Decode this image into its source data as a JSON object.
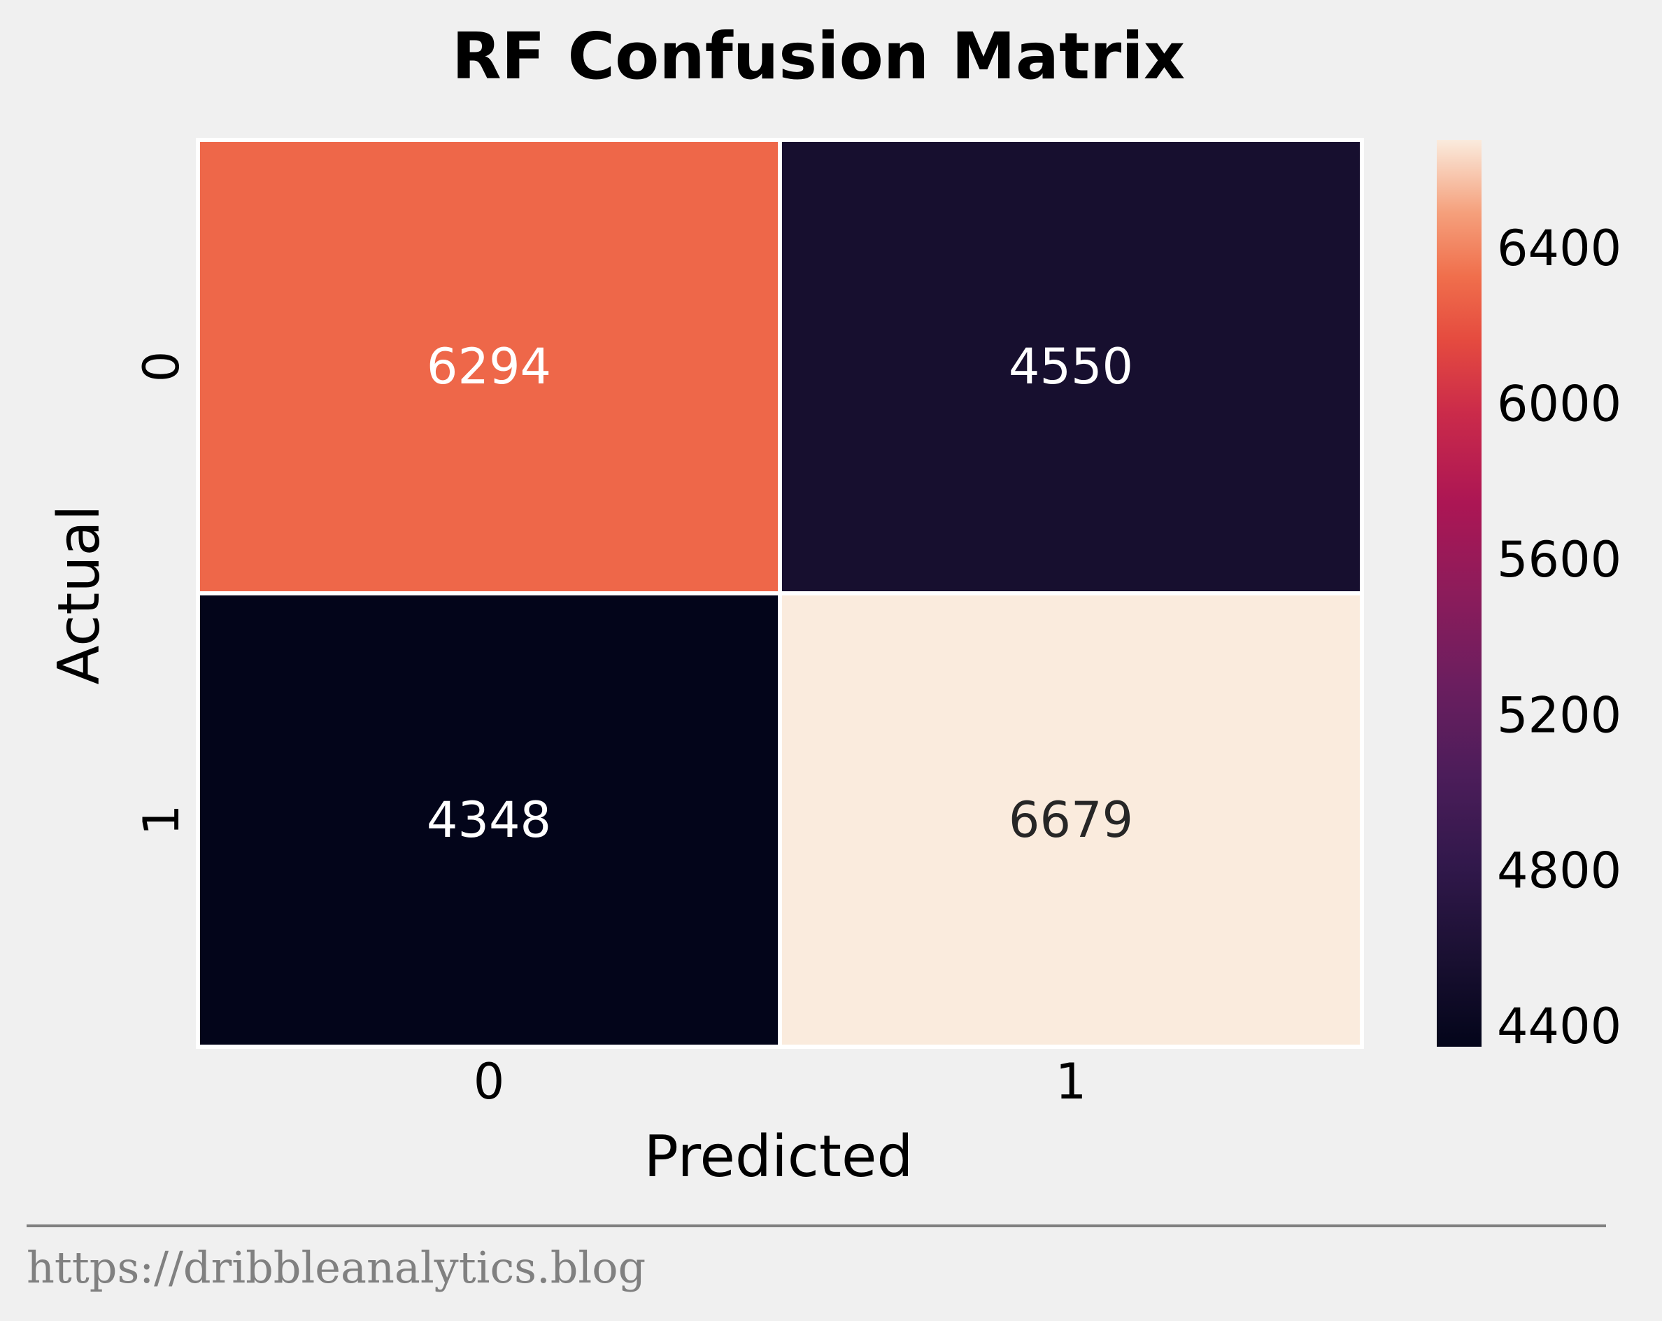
{
  "chart_data": {
    "type": "heatmap",
    "title": "RF Confusion Matrix",
    "xlabel": "Predicted",
    "ylabel": "Actual",
    "x_categories": [
      "0",
      "1"
    ],
    "y_categories": [
      "0",
      "1"
    ],
    "values": [
      [
        6294,
        4550
      ],
      [
        4348,
        6679
      ]
    ],
    "colorscale": {
      "name": "rocket",
      "vmin": 4348,
      "vmax": 6679,
      "ticks": [
        4400,
        4800,
        5200,
        5600,
        6000,
        6400
      ],
      "tick_labels": [
        "4400",
        "4800",
        "5200",
        "5600",
        "6000",
        "6400"
      ]
    },
    "grid": false,
    "legend": "colorbar-right"
  },
  "footer": {
    "source_text": "https://dribbleanalytics.blog"
  },
  "colors": {
    "background": "#f0f0f0",
    "cell_border": "#ffffff",
    "footer_rule": "#808080",
    "text_dark": "#262626",
    "text_light": "#ffffff"
  }
}
